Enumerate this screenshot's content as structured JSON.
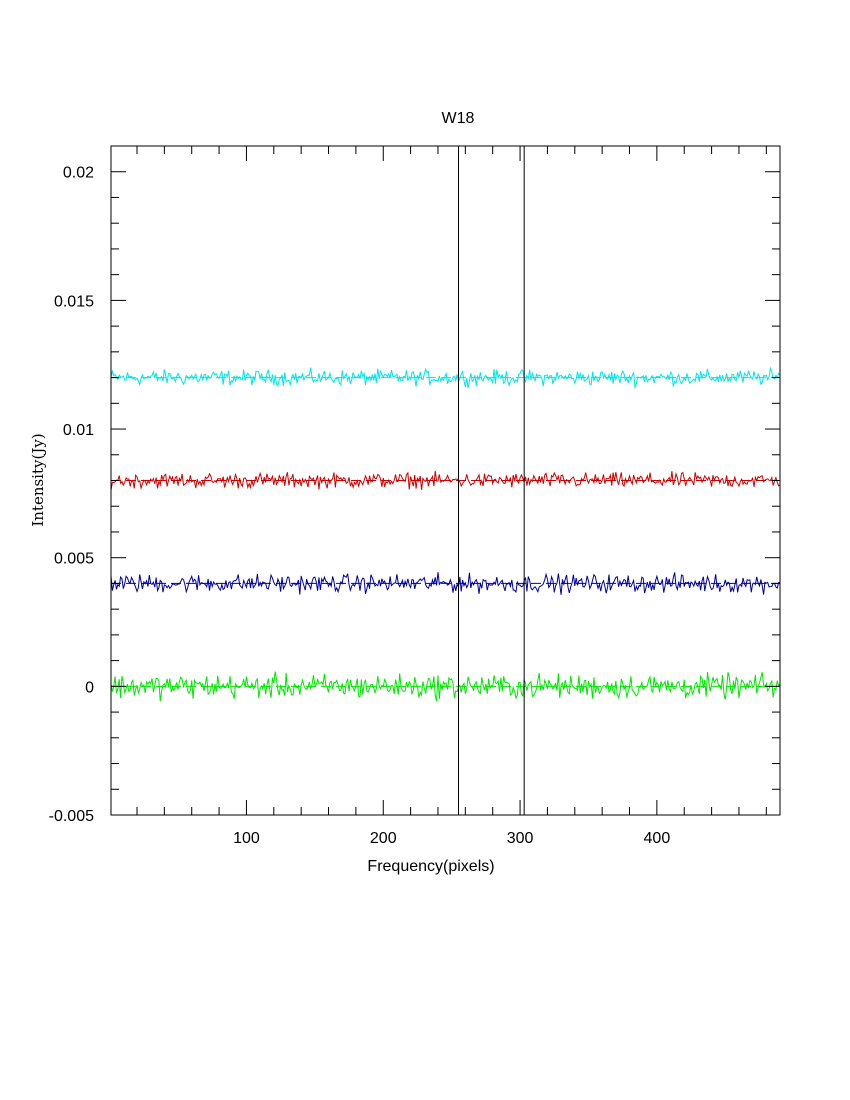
{
  "chart_data": {
    "type": "line",
    "title": "W18",
    "xlabel": "Frequency(pixels)",
    "ylabel": "Intensity(Jy)",
    "xlim": [
      1,
      490
    ],
    "ylim": [
      -0.005,
      0.021
    ],
    "x_ticks": [
      100,
      200,
      300,
      400
    ],
    "x_tick_labels": [
      "100",
      "200",
      "300",
      "400"
    ],
    "y_ticks": [
      -0.005,
      0,
      0.005,
      0.01,
      0.015,
      0.02
    ],
    "y_tick_labels": [
      "-0.005",
      "0",
      "0.005",
      "0.01",
      "0.015",
      "0.02"
    ],
    "grid": false,
    "legend": "none",
    "vertical_markers": [
      255,
      303
    ],
    "series": [
      {
        "color": "#00e5e5",
        "baseline": 0.012,
        "noise_amplitude": 0.00025
      },
      {
        "color": "#cc0000",
        "baseline": 0.008,
        "noise_amplitude": 0.00025
      },
      {
        "color": "#00009e",
        "baseline": 0.004,
        "noise_amplitude": 0.0003
      },
      {
        "color": "#00e600",
        "baseline": 0.0,
        "noise_amplitude": 0.0004
      }
    ]
  }
}
